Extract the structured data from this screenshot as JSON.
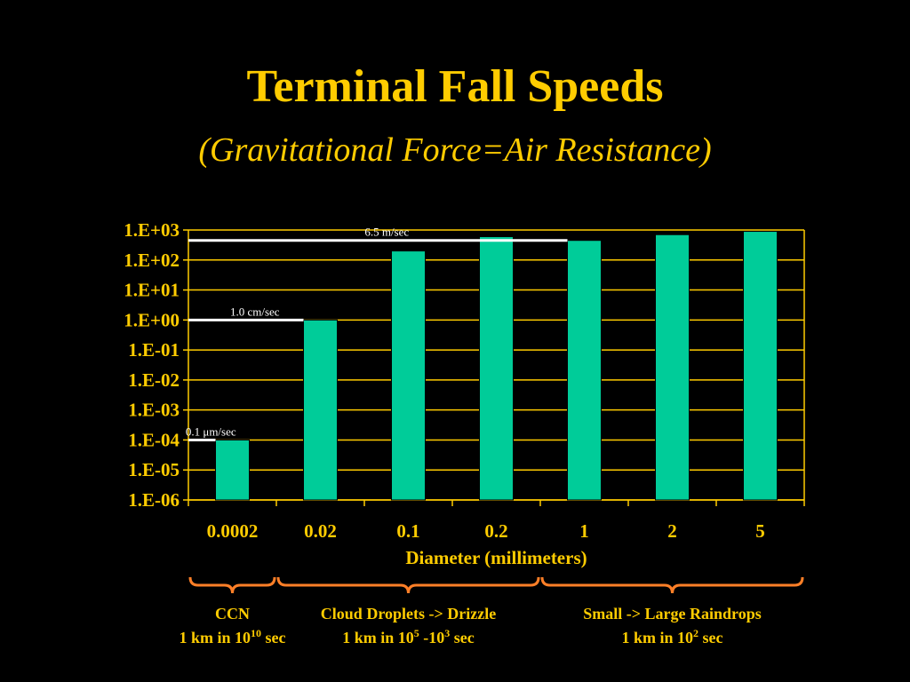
{
  "slide": {
    "title": "Terminal Fall Speeds",
    "subtitle": "(Gravitational Force=Air Resistance)"
  },
  "colors": {
    "background": "#000000",
    "text": "#ffcc00",
    "bar": "#00cc99",
    "annotation_line": "#ffffff",
    "brace": "#ff7f27"
  },
  "chart_data": {
    "type": "bar",
    "y_scale": "log",
    "categories": [
      "0.0002",
      "0.02",
      "0.1",
      "0.2",
      "1",
      "2",
      "5"
    ],
    "values": [
      0.0001,
      1,
      200,
      600,
      450,
      700,
      900
    ],
    "y_tick_labels": [
      "1.E-06",
      "1.E-05",
      "1.E-04",
      "1.E-03",
      "1.E-02",
      "1.E-01",
      "1.E+00",
      "1.E+01",
      "1.E+02",
      "1.E+03"
    ],
    "ylim": [
      1e-06,
      1000
    ],
    "grid": true,
    "xlabel": "Diameter (millimeters)",
    "ylabel": "",
    "annotations": [
      {
        "text": "6.5 m/sec",
        "value": 450,
        "to_category": 4
      },
      {
        "text": "1.0 cm/sec",
        "value": 1,
        "to_category": 1
      },
      {
        "text": "0.1 μm/sec",
        "value": 0.0001,
        "to_category": 0
      }
    ]
  },
  "groups": [
    {
      "name": "CCN",
      "time_prefix": "1 km in 10",
      "exp1": "10",
      "mid": "",
      "exp2": "",
      "time_suffix": " sec",
      "from_category": 0,
      "to_category": 0
    },
    {
      "name": "Cloud Droplets -> Drizzle",
      "time_prefix": "1 km in 10",
      "exp1": "5",
      "mid": " -10",
      "exp2": "3",
      "time_suffix": " sec",
      "from_category": 1,
      "to_category": 3
    },
    {
      "name": "Small -> Large Raindrops",
      "time_prefix": "1 km in 10",
      "exp1": "2",
      "mid": "",
      "exp2": "",
      "time_suffix": " sec",
      "from_category": 4,
      "to_category": 6
    }
  ]
}
